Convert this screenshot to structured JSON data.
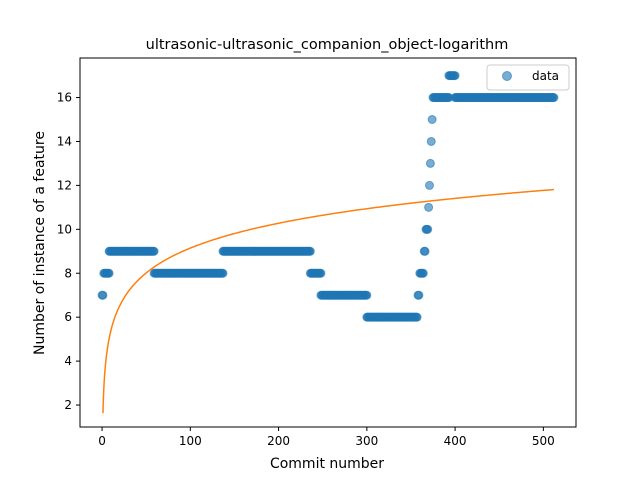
{
  "chart_data": {
    "type": "scatter",
    "title": "ultrasonic-ultrasonic_companion_object-logarithm",
    "xlabel": "Commit number",
    "ylabel": "Number of instance of a feature",
    "xlim": [
      -25,
      537
    ],
    "ylim": [
      1.0,
      17.8
    ],
    "xticks": [
      0,
      100,
      200,
      300,
      400,
      500
    ],
    "yticks": [
      2,
      4,
      6,
      8,
      10,
      12,
      14,
      16
    ],
    "grid": false,
    "legend": {
      "placement": "top-right",
      "entries": [
        "data"
      ]
    },
    "colors": {
      "data": "#1f77b4",
      "fit": "#ff7f0e"
    },
    "series": [
      {
        "name": "data",
        "kind": "scatter",
        "segments": [
          {
            "x_start": 0,
            "x_end": 1,
            "y": 7
          },
          {
            "x_start": 2,
            "x_end": 8,
            "y": 8
          },
          {
            "x_start": 8,
            "x_end": 59,
            "y": 9
          },
          {
            "x_start": 59,
            "x_end": 137,
            "y": 8
          },
          {
            "x_start": 137,
            "x_end": 236,
            "y": 9
          },
          {
            "x_start": 236,
            "x_end": 248,
            "y": 8
          },
          {
            "x_start": 248,
            "x_end": 300,
            "y": 7
          },
          {
            "x_start": 300,
            "x_end": 357,
            "y": 6
          },
          {
            "x_start": 358,
            "x_end": 359,
            "y": 7
          },
          {
            "x_start": 360,
            "x_end": 364,
            "y": 8
          },
          {
            "x_start": 365,
            "x_end": 366,
            "y": 9
          },
          {
            "x_start": 367,
            "x_end": 369,
            "y": 10
          },
          {
            "x_start": 370,
            "x_end": 370,
            "y": 11
          },
          {
            "x_start": 371,
            "x_end": 371,
            "y": 12
          },
          {
            "x_start": 372,
            "x_end": 372,
            "y": 13
          },
          {
            "x_start": 373,
            "x_end": 373,
            "y": 14
          },
          {
            "x_start": 374,
            "x_end": 374,
            "y": 15
          },
          {
            "x_start": 375,
            "x_end": 393,
            "y": 16
          },
          {
            "x_start": 393,
            "x_end": 400,
            "y": 17
          },
          {
            "x_start": 400,
            "x_end": 512,
            "y": 16
          }
        ]
      },
      {
        "name": "",
        "kind": "line",
        "function": "logarithmic",
        "a": 1.63,
        "b": 1.632,
        "x_range": [
          1,
          512
        ]
      }
    ]
  }
}
